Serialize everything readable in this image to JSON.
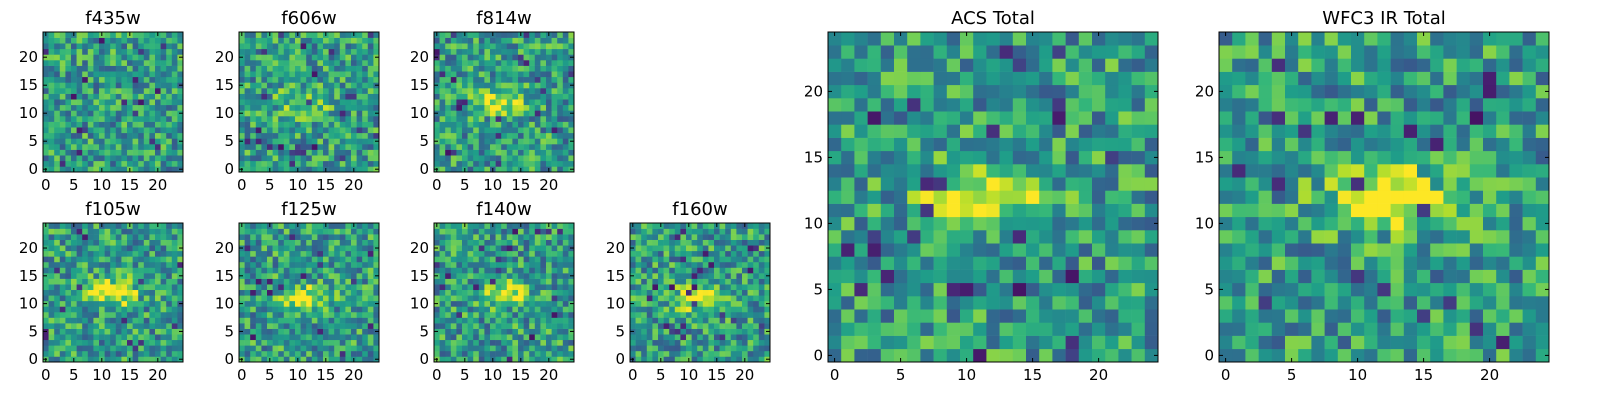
{
  "figure": {
    "colormap": "viridis",
    "colormap_stops": [
      "#440154",
      "#3b528b",
      "#21918c",
      "#5ec962",
      "#fde725"
    ]
  },
  "chart_data": [
    {
      "type": "heatmap",
      "title": "f435w",
      "image_size": [
        25,
        25
      ],
      "xlim": [
        -0.5,
        24.5
      ],
      "ylim": [
        -0.5,
        24.5
      ],
      "xticks": [
        0,
        5,
        10,
        15,
        20
      ],
      "yticks": [
        0,
        5,
        10,
        15,
        20
      ],
      "source": {
        "center": [
          12,
          12
        ],
        "peak": 0.0
      }
    },
    {
      "type": "heatmap",
      "title": "f606w",
      "image_size": [
        25,
        25
      ],
      "xlim": [
        -0.5,
        24.5
      ],
      "ylim": [
        -0.5,
        24.5
      ],
      "xticks": [
        0,
        5,
        10,
        15,
        20
      ],
      "yticks": [
        0,
        5,
        10,
        15,
        20
      ],
      "source": {
        "center": [
          11,
          12
        ],
        "peak": 0.35
      }
    },
    {
      "type": "heatmap",
      "title": "f814w",
      "image_size": [
        25,
        25
      ],
      "xlim": [
        -0.5,
        24.5
      ],
      "ylim": [
        -0.5,
        24.5
      ],
      "xticks": [
        0,
        5,
        10,
        15,
        20
      ],
      "yticks": [
        0,
        5,
        10,
        15,
        20
      ],
      "source": {
        "center": [
          11,
          12
        ],
        "peak": 0.4
      }
    },
    {
      "type": "heatmap",
      "title": "f105w",
      "image_size": [
        25,
        25
      ],
      "xlim": [
        -0.5,
        24.5
      ],
      "ylim": [
        -0.5,
        24.5
      ],
      "xticks": [
        0,
        5,
        10,
        15,
        20
      ],
      "yticks": [
        0,
        5,
        10,
        15,
        20
      ],
      "source": {
        "center": [
          12,
          12
        ],
        "peak": 0.55
      }
    },
    {
      "type": "heatmap",
      "title": "f125w",
      "image_size": [
        25,
        25
      ],
      "xlim": [
        -0.5,
        24.5
      ],
      "ylim": [
        -0.5,
        24.5
      ],
      "xticks": [
        0,
        5,
        10,
        15,
        20
      ],
      "yticks": [
        0,
        5,
        10,
        15,
        20
      ],
      "source": {
        "center": [
          11,
          11
        ],
        "peak": 0.5
      }
    },
    {
      "type": "heatmap",
      "title": "f140w",
      "image_size": [
        25,
        25
      ],
      "xlim": [
        -0.5,
        24.5
      ],
      "ylim": [
        -0.5,
        24.5
      ],
      "xticks": [
        0,
        5,
        10,
        15,
        20
      ],
      "yticks": [
        0,
        5,
        10,
        15,
        20
      ],
      "source": {
        "center": [
          12,
          12
        ],
        "peak": 0.45
      }
    },
    {
      "type": "heatmap",
      "title": "f160w",
      "image_size": [
        25,
        25
      ],
      "xlim": [
        -0.5,
        24.5
      ],
      "ylim": [
        -0.5,
        24.5
      ],
      "xticks": [
        0,
        5,
        10,
        15,
        20
      ],
      "yticks": [
        0,
        5,
        10,
        15,
        20
      ],
      "source": {
        "center": [
          12,
          11
        ],
        "peak": 0.55
      }
    },
    {
      "type": "heatmap",
      "title": "ACS Total",
      "image_size": [
        25,
        25
      ],
      "xlim": [
        -0.5,
        24.5
      ],
      "ylim": [
        -0.5,
        24.5
      ],
      "xticks": [
        0,
        5,
        10,
        15,
        20
      ],
      "yticks": [
        0,
        5,
        10,
        15,
        20
      ],
      "source": {
        "center": [
          11,
          12
        ],
        "peak": 0.5
      }
    },
    {
      "type": "heatmap",
      "title": "WFC3 IR Total",
      "image_size": [
        25,
        25
      ],
      "xlim": [
        -0.5,
        24.5
      ],
      "ylim": [
        -0.5,
        24.5
      ],
      "xticks": [
        0,
        5,
        10,
        15,
        20
      ],
      "yticks": [
        0,
        5,
        10,
        15,
        20
      ],
      "source": {
        "center": [
          12,
          12
        ],
        "peak": 0.6
      }
    }
  ]
}
